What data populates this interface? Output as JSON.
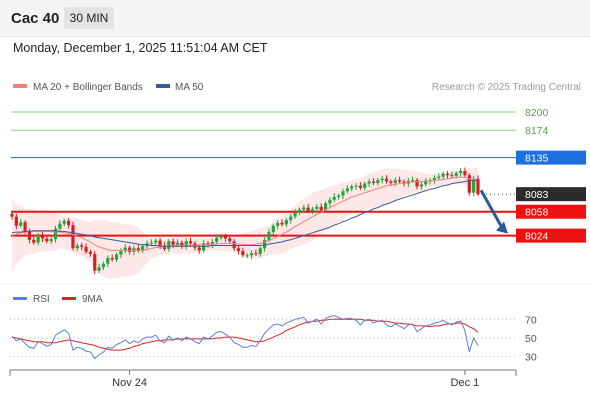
{
  "header": {
    "symbol": "Cac 40",
    "timeframe": "30 MIN",
    "timestamp": "Monday, December 1, 2025 11:51:04 AM CET"
  },
  "colors": {
    "up": "#22a63c",
    "down": "#d42020",
    "bollinger_fill": "#fde3e3",
    "ma20": "#f08080",
    "ma50": "#3a5a9c",
    "blue_level": "#1e6fe0",
    "red_level": "#ee1111",
    "green_level": "#8fcf7f",
    "arrow": "#2a5a9e",
    "rsi": "#5b7fd8",
    "rsi_ma": "#dd2222"
  },
  "chart_data": [
    {
      "type": "candlestick",
      "legend": [
        "MA 20 + Bollinger Bands",
        "MA 50"
      ],
      "watermark": "Research © 2025 Trading Central",
      "ylim": [
        7958,
        8217
      ],
      "levels": [
        {
          "value": 8200,
          "label": "8200",
          "kind": "resistance-green"
        },
        {
          "value": 8174,
          "label": "8174",
          "kind": "resistance-green"
        },
        {
          "value": 8135,
          "label": "8135",
          "kind": "pivot-blue"
        },
        {
          "value": 8083,
          "label": "8083",
          "kind": "last-price"
        },
        {
          "value": 8058,
          "label": "8058",
          "kind": "support-red"
        },
        {
          "value": 8024,
          "label": "8024",
          "kind": "support-red"
        }
      ],
      "x_ticks": [
        {
          "index": 27,
          "label": "Nov 24"
        },
        {
          "index": 104,
          "label": "Dec 1"
        }
      ],
      "projection": {
        "from": 8080,
        "to": 8024,
        "direction": "down"
      },
      "closes": [
        8051,
        8038,
        8043,
        8030,
        8018,
        8014,
        8025,
        8020,
        8016,
        8019,
        8034,
        8041,
        8045,
        8039,
        8006,
        8010,
        8008,
        8001,
        7998,
        7974,
        7979,
        7984,
        7992,
        7990,
        7997,
        8002,
        8007,
        8001,
        8006,
        8003,
        8009,
        8013,
        8014,
        8017,
        8010,
        8005,
        8016,
        8011,
        8014,
        8009,
        8016,
        8013,
        8007,
        8003,
        8013,
        8011,
        8015,
        8021,
        8023,
        8020,
        8016,
        8006,
        8002,
        7996,
        7996,
        7999,
        7998,
        8006,
        8018,
        8029,
        8038,
        8042,
        8040,
        8046,
        8051,
        8057,
        8061,
        8064,
        8059,
        8062,
        8065,
        8060,
        8070,
        8075,
        8079,
        8081,
        8087,
        8091,
        8094,
        8095,
        8092,
        8098,
        8101,
        8099,
        8103,
        8105,
        8101,
        8099,
        8103,
        8101,
        8098,
        8102,
        8103,
        8094,
        8097,
        8101,
        8103,
        8106,
        8108,
        8112,
        8110,
        8109,
        8113,
        8116,
        8110,
        8085,
        8105,
        8083
      ],
      "ma20": [
        8024,
        8026,
        8028,
        8029,
        8030,
        8030,
        8030,
        8030,
        8030,
        8030,
        8029,
        8029,
        8028,
        8027,
        8025,
        8023,
        8021,
        8018,
        8015,
        8011,
        8008,
        8006,
        8004,
        8003,
        8003,
        8003,
        8003,
        8003,
        8003,
        8003,
        8003,
        8004,
        8006,
        8007,
        8008,
        8008,
        8009,
        8010,
        8010,
        8010,
        8010,
        8010,
        8010,
        8011,
        8011,
        8011,
        8012,
        8012,
        8013,
        8013,
        8013,
        8013,
        8012,
        8012,
        8011,
        8011,
        8012,
        8013,
        8015,
        8017,
        8020,
        8023,
        8026,
        8029,
        8033,
        8037,
        8040,
        8044,
        8047,
        8051,
        8054,
        8057,
        8061,
        8064,
        8067,
        8070,
        8073,
        8076,
        8079,
        8081,
        8083,
        8085,
        8087,
        8089,
        8091,
        8093,
        8095,
        8096,
        8097,
        8098,
        8099,
        8100,
        8101,
        8101,
        8101,
        8102,
        8102,
        8103,
        8103,
        8104,
        8105,
        8106,
        8107,
        8107,
        8107,
        8105,
        8104,
        8102
      ],
      "ma50": [
        8028,
        8029,
        8029,
        8030,
        8030,
        8031,
        8031,
        8031,
        8031,
        8031,
        8031,
        8030,
        8030,
        8029,
        8028,
        8027,
        8026,
        8025,
        8024,
        8022,
        8021,
        8020,
        8019,
        8018,
        8017,
        8016,
        8015,
        8014,
        8013,
        8012,
        8011,
        8011,
        8010,
        8010,
        8009,
        8009,
        8009,
        8009,
        8009,
        8009,
        8009,
        8009,
        8009,
        8009,
        8009,
        8009,
        8010,
        8010,
        8010,
        8010,
        8010,
        8010,
        8010,
        8010,
        8010,
        8010,
        8010,
        8010,
        8011,
        8012,
        8013,
        8014,
        8015,
        8017,
        8018,
        8020,
        8022,
        8024,
        8026,
        8028,
        8030,
        8032,
        8034,
        8036,
        8039,
        8041,
        8044,
        8046,
        8049,
        8051,
        8054,
        8057,
        8059,
        8062,
        8064,
        8067,
        8069,
        8071,
        8074,
        8076,
        8078,
        8080,
        8082,
        8084,
        8086,
        8088,
        8090,
        8091,
        8093,
        8095,
        8096,
        8098,
        8099,
        8100,
        8101,
        8102,
        8102,
        8103
      ]
    },
    {
      "type": "line",
      "legend": [
        "RSI",
        "9MA"
      ],
      "ylim": [
        20,
        80
      ],
      "y_ticks": [
        70,
        50,
        30
      ],
      "rsi": [
        52,
        47,
        49,
        44,
        40,
        39,
        46,
        44,
        41,
        43,
        53,
        56,
        59,
        55,
        37,
        40,
        39,
        36,
        35,
        28,
        32,
        35,
        40,
        39,
        43,
        45,
        48,
        44,
        47,
        45,
        49,
        51,
        51,
        53,
        47,
        45,
        52,
        48,
        50,
        47,
        51,
        49,
        46,
        44,
        51,
        49,
        52,
        56,
        57,
        54,
        51,
        45,
        43,
        40,
        40,
        42,
        41,
        47,
        55,
        60,
        64,
        65,
        63,
        66,
        68,
        70,
        71,
        72,
        66,
        68,
        70,
        65,
        71,
        73,
        74,
        72,
        70,
        71,
        71,
        69,
        64,
        69,
        70,
        66,
        68,
        69,
        64,
        62,
        65,
        63,
        60,
        64,
        65,
        57,
        60,
        63,
        64,
        66,
        67,
        69,
        66,
        64,
        67,
        68,
        58,
        35,
        50,
        42
      ],
      "ma9": [
        51,
        50,
        49,
        48,
        47,
        46,
        46,
        46,
        45,
        45,
        45,
        46,
        47,
        48,
        47,
        46,
        45,
        44,
        43,
        42,
        40,
        39,
        38,
        37,
        37,
        37,
        38,
        39,
        41,
        42,
        44,
        45,
        46,
        47,
        47,
        48,
        48,
        48,
        49,
        49,
        49,
        49,
        49,
        49,
        49,
        49,
        49,
        50,
        50,
        51,
        51,
        51,
        50,
        49,
        48,
        47,
        46,
        46,
        47,
        49,
        51,
        53,
        55,
        58,
        60,
        62,
        64,
        66,
        67,
        68,
        68,
        69,
        69,
        70,
        70,
        70,
        70,
        70,
        70,
        70,
        70,
        69,
        69,
        69,
        68,
        68,
        68,
        67,
        66,
        66,
        65,
        65,
        64,
        63,
        63,
        63,
        62,
        63,
        63,
        64,
        65,
        65,
        66,
        66,
        65,
        62,
        60,
        56
      ]
    }
  ]
}
